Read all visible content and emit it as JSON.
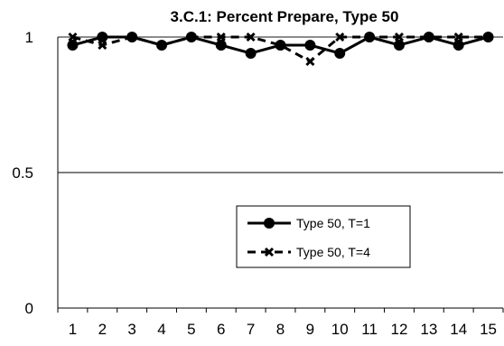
{
  "chart_data": {
    "type": "line",
    "title": "3.C.1: Percent Prepare, Type 50",
    "xlabel": "",
    "ylabel": "",
    "categories": [
      "1",
      "2",
      "3",
      "4",
      "5",
      "6",
      "7",
      "8",
      "9",
      "10",
      "11",
      "12",
      "13",
      "14",
      "15"
    ],
    "ylim": [
      0,
      1
    ],
    "y_ticks": [
      "0",
      "0.5",
      "1"
    ],
    "grid": "horizontal",
    "legend_position": "center-right",
    "series": [
      {
        "name": "Type 50, T=1",
        "marker": "circle",
        "line_style": "solid",
        "color": "#000000",
        "values": [
          0.97,
          1.0,
          1.0,
          0.97,
          1.0,
          0.97,
          0.94,
          0.97,
          0.97,
          0.94,
          1.0,
          0.97,
          1.0,
          0.97,
          1.0
        ]
      },
      {
        "name": "Type 50, T=4",
        "marker": "x",
        "line_style": "dashed",
        "color": "#000000",
        "values": [
          1.0,
          0.97,
          1.0,
          0.97,
          1.0,
          1.0,
          1.0,
          0.97,
          0.91,
          1.0,
          1.0,
          1.0,
          1.0,
          1.0,
          1.0
        ]
      }
    ]
  }
}
